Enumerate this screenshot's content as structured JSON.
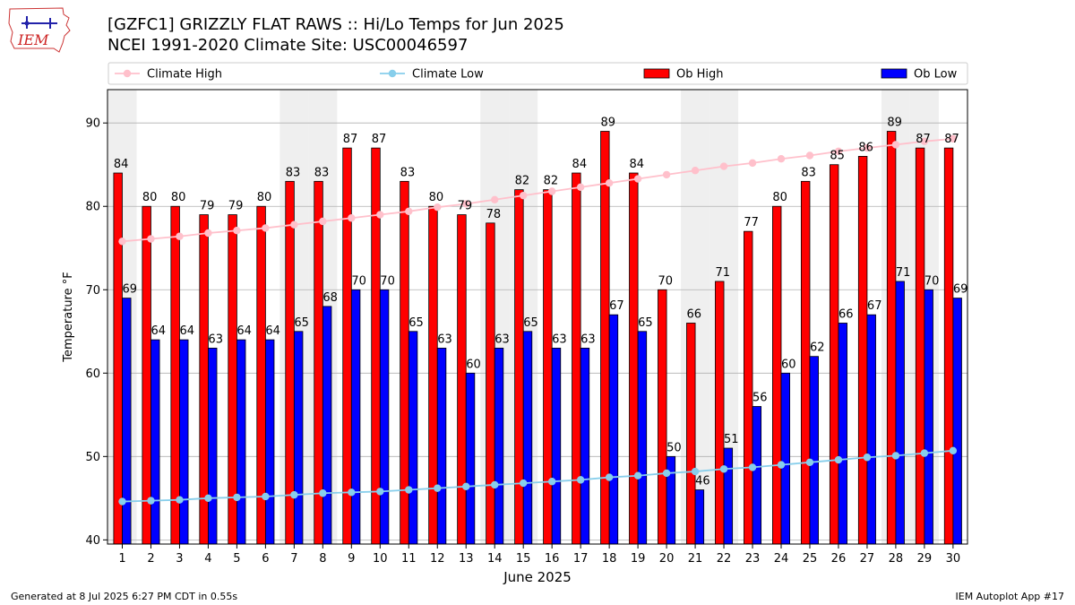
{
  "header": {
    "title_line1": "[GZFC1] GRIZZLY FLAT RAWS :: Hi/Lo Temps for Jun 2025",
    "title_line2": "NCEI 1991-2020 Climate Site: USC00046597",
    "logo_text": "IEM"
  },
  "footer": {
    "left": "Generated at 8 Jul 2025 6:27 PM CDT in 0.55s",
    "right": "IEM Autoplot App #17"
  },
  "colors": {
    "ob_high": "#ff0000",
    "ob_low": "#0000ff",
    "climate_high": "#ffc0cb",
    "climate_low": "#87ceeb",
    "weekend_shade": "#efefef",
    "grid": "#b0b0b0"
  },
  "chart_data": {
    "type": "bar",
    "xlabel": "June 2025",
    "ylabel": "Temperature °F",
    "ylim": [
      39.5,
      94
    ],
    "yticks": [
      40,
      50,
      60,
      70,
      80,
      90
    ],
    "grid": "horizontal",
    "legend_position": "top",
    "categories": [
      "1",
      "2",
      "3",
      "4",
      "5",
      "6",
      "7",
      "8",
      "9",
      "10",
      "11",
      "12",
      "13",
      "14",
      "15",
      "16",
      "17",
      "18",
      "19",
      "20",
      "21",
      "22",
      "23",
      "24",
      "25",
      "26",
      "27",
      "28",
      "29",
      "30"
    ],
    "shaded_days": [
      1,
      7,
      8,
      14,
      15,
      21,
      22,
      28,
      29
    ],
    "series": [
      {
        "name": "Ob High",
        "kind": "bar",
        "values": [
          84,
          80,
          80,
          79,
          79,
          80,
          83,
          83,
          87,
          87,
          83,
          80,
          79,
          78,
          82,
          82,
          84,
          89,
          84,
          70,
          66,
          71,
          77,
          80,
          83,
          85,
          86,
          89,
          87,
          87
        ]
      },
      {
        "name": "Ob Low",
        "kind": "bar",
        "values": [
          69,
          64,
          64,
          63,
          64,
          64,
          65,
          68,
          70,
          70,
          65,
          63,
          60,
          63,
          65,
          63,
          63,
          67,
          65,
          50,
          46,
          51,
          56,
          60,
          62,
          66,
          67,
          71,
          70,
          69
        ]
      },
      {
        "name": "Climate High",
        "kind": "line",
        "values": [
          75.8,
          76.1,
          76.4,
          76.8,
          77.1,
          77.4,
          77.8,
          78.2,
          78.6,
          79.0,
          79.4,
          79.9,
          80.3,
          80.8,
          81.3,
          81.8,
          82.3,
          82.8,
          83.3,
          83.8,
          84.3,
          84.8,
          85.2,
          85.7,
          86.1,
          86.6,
          87.0,
          87.4,
          87.8,
          88.1
        ]
      },
      {
        "name": "Climate Low",
        "kind": "line",
        "values": [
          44.6,
          44.7,
          44.8,
          45.0,
          45.1,
          45.2,
          45.4,
          45.6,
          45.7,
          45.8,
          46.0,
          46.2,
          46.4,
          46.6,
          46.8,
          47.0,
          47.2,
          47.5,
          47.7,
          48.0,
          48.2,
          48.5,
          48.7,
          49.0,
          49.3,
          49.6,
          49.9,
          50.1,
          50.4,
          50.7
        ]
      }
    ]
  }
}
